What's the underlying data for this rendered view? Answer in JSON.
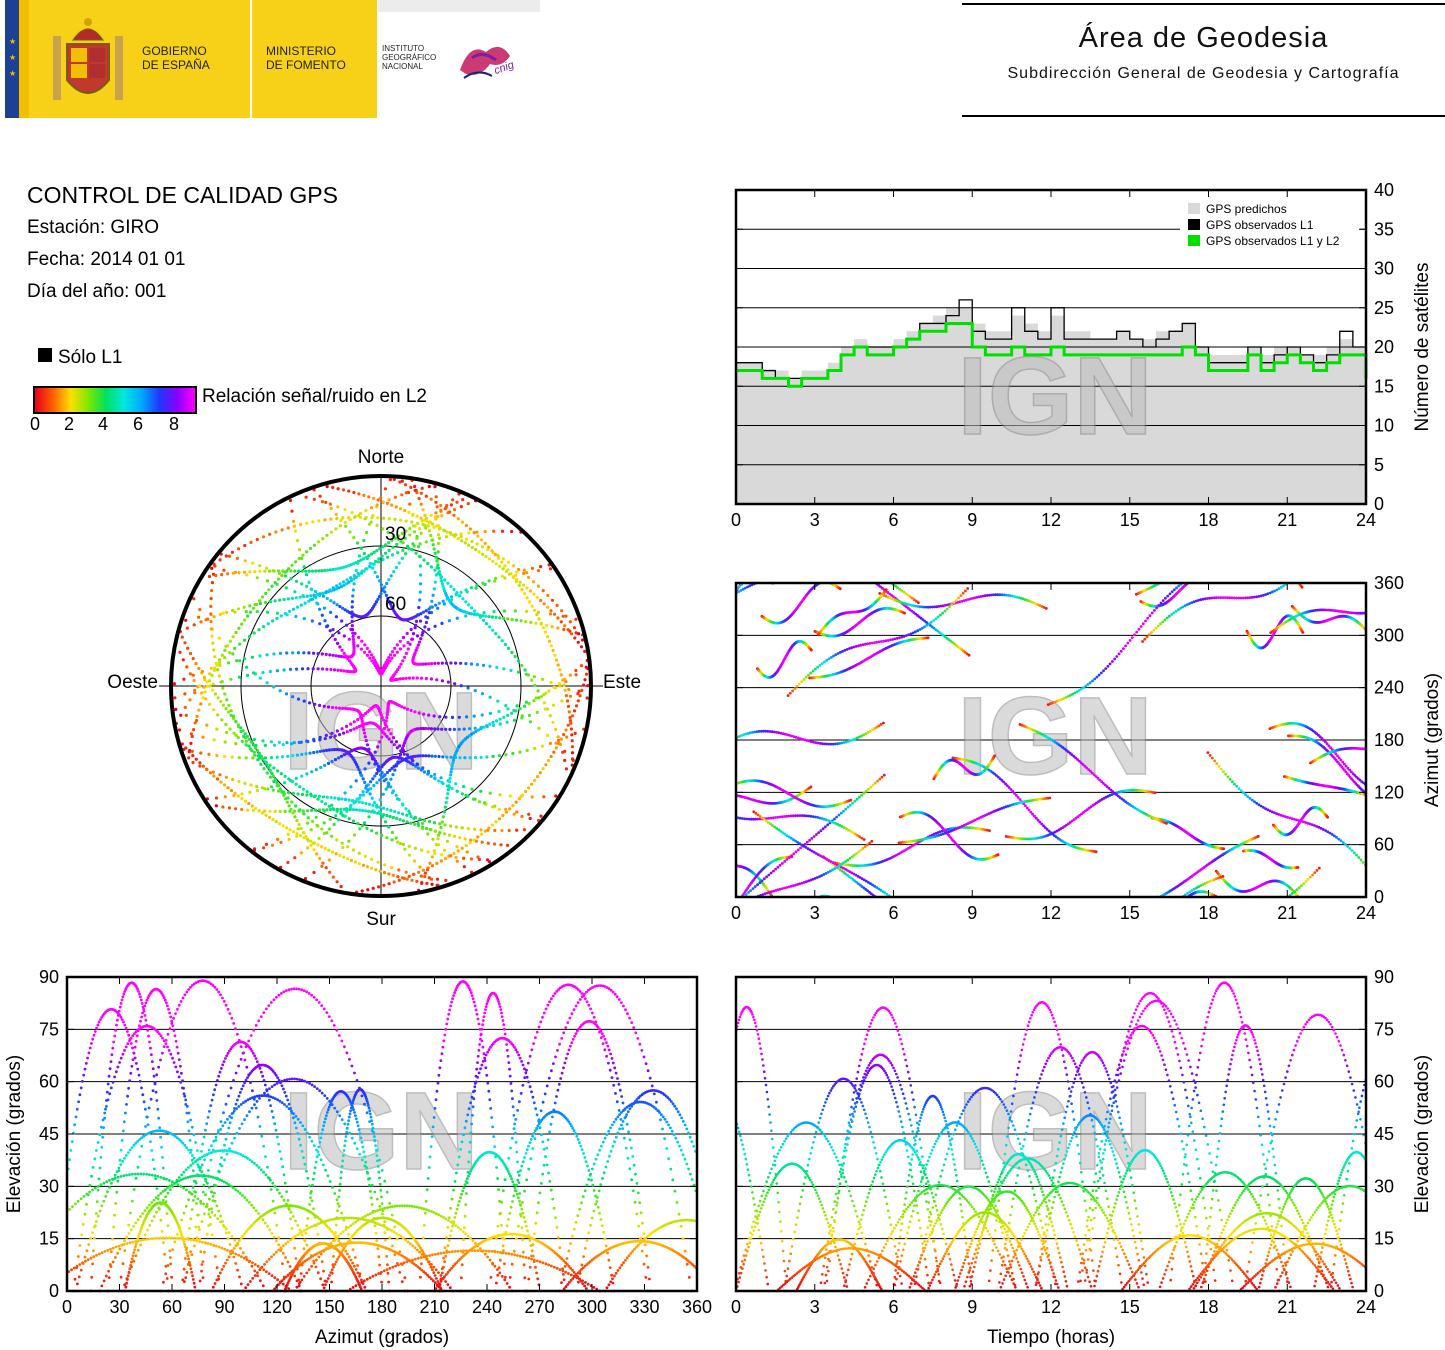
{
  "header": {
    "gobierno": "GOBIERNO\nDE ESPAÑA",
    "ministerio": "MINISTERIO\nDE FOMENTO",
    "instituto": "INSTITUTO\nGEOGRÁFICO\nNACIONAL",
    "cnig": "cnig",
    "area_title": "Área de Geodesia",
    "subtitle": "Subdirección General de Geodesia y Cartografía"
  },
  "info": {
    "title": "CONTROL DE CALIDAD GPS",
    "station": "Estación: GIRO",
    "date": "Fecha: 2014 01 01",
    "doy": "Día del año: 001"
  },
  "legend": {
    "l1_only": "Sólo L1",
    "snr_label": "Relación señal/ruido en L2",
    "colorbar_ticks": [
      "0",
      "2",
      "4",
      "6",
      "8"
    ],
    "colorbar_colors": [
      "#e8001b",
      "#ff5c00",
      "#ffdf00",
      "#7ee800",
      "#00e060",
      "#00e8e0",
      "#00a8ff",
      "#2038ff",
      "#8a00ff",
      "#ff00ff"
    ]
  },
  "watermark": "IGN",
  "chart_data": [
    {
      "id": "satcount",
      "type": "area",
      "x_range": [
        0,
        24
      ],
      "y_range": [
        0,
        40
      ],
      "xticks": [
        "0",
        "3",
        "6",
        "9",
        "12",
        "15",
        "18",
        "21",
        "24"
      ],
      "yticks": [
        "0",
        "5",
        "10",
        "15",
        "20",
        "25",
        "30",
        "35",
        "40"
      ],
      "ylabel": "Número de satélites",
      "grid": true,
      "legend": [
        "GPS predichos",
        "GPS observados L1",
        "GPS observados L1 y L2"
      ],
      "legend_colors": [
        "#d9d9d9",
        "#000000",
        "#00e000"
      ],
      "x": [
        0,
        0.5,
        1,
        1.5,
        2,
        2.5,
        3,
        3.5,
        4,
        4.5,
        5,
        5.5,
        6,
        6.5,
        7,
        7.5,
        8,
        8.5,
        9,
        9.5,
        10,
        10.5,
        11,
        11.5,
        12,
        12.5,
        13,
        13.5,
        14,
        14.5,
        15,
        15.5,
        16,
        16.5,
        17,
        17.5,
        18,
        18.5,
        19,
        19.5,
        20,
        20.5,
        21,
        21.5,
        22,
        22.5,
        23,
        23.5,
        24
      ],
      "series": [
        {
          "name": "GPS predichos",
          "values": [
            18,
            18,
            17,
            17,
            16,
            17,
            17,
            18,
            20,
            21,
            20,
            20,
            21,
            22,
            23,
            24,
            25,
            25,
            23,
            22,
            22,
            24,
            23,
            22,
            24,
            22,
            22,
            21,
            21,
            22,
            21,
            21,
            22,
            22,
            23,
            20,
            19,
            19,
            19,
            20,
            19,
            20,
            20,
            19,
            19,
            20,
            21,
            20,
            17
          ]
        },
        {
          "name": "GPS observados L1",
          "values": [
            18,
            18,
            17,
            16,
            16,
            16,
            16,
            17,
            19,
            20,
            20,
            20,
            20,
            21,
            23,
            23,
            24,
            26,
            22,
            21,
            21,
            25,
            22,
            21,
            25,
            21,
            21,
            21,
            21,
            22,
            21,
            20,
            21,
            22,
            23,
            20,
            18,
            18,
            18,
            20,
            18,
            19,
            20,
            19,
            18,
            19,
            22,
            20,
            16
          ]
        },
        {
          "name": "GPS observados L1 y L2",
          "values": [
            17,
            17,
            16,
            16,
            15,
            16,
            16,
            17,
            19,
            20,
            19,
            19,
            20,
            21,
            22,
            22,
            23,
            23,
            20,
            19,
            19,
            20,
            19,
            19,
            20,
            19,
            19,
            19,
            19,
            19,
            19,
            19,
            19,
            19,
            20,
            19,
            17,
            17,
            17,
            19,
            17,
            18,
            19,
            18,
            17,
            18,
            19,
            19,
            16
          ]
        }
      ]
    },
    {
      "id": "skyplot",
      "type": "scatter",
      "polar": true,
      "directions": {
        "n": "Norte",
        "s": "Sur",
        "e": "Este",
        "w": "Oeste"
      },
      "ring_labels": [
        "30",
        "60"
      ]
    },
    {
      "id": "azimuth_time",
      "type": "scatter",
      "x_range": [
        0,
        24
      ],
      "y_range": [
        0,
        360
      ],
      "xticks": [
        "0",
        "3",
        "6",
        "9",
        "12",
        "15",
        "18",
        "21",
        "24"
      ],
      "yticks": [
        "0",
        "60",
        "120",
        "180",
        "240",
        "300",
        "360"
      ],
      "ylabel": "Azimut (grados)",
      "grid": true
    },
    {
      "id": "elev_azimuth",
      "type": "scatter",
      "x_range": [
        0,
        360
      ],
      "y_range": [
        0,
        90
      ],
      "xticks": [
        "0",
        "30",
        "60",
        "90",
        "120",
        "150",
        "180",
        "210",
        "240",
        "270",
        "300",
        "330",
        "360"
      ],
      "yticks": [
        "0",
        "15",
        "30",
        "45",
        "60",
        "75",
        "90"
      ],
      "xlabel": "Azimut (grados)",
      "ylabel": "Elevación (grados)",
      "grid": true
    },
    {
      "id": "elev_time",
      "type": "scatter",
      "x_range": [
        0,
        24
      ],
      "y_range": [
        0,
        90
      ],
      "xticks": [
        "0",
        "3",
        "6",
        "9",
        "12",
        "15",
        "18",
        "21",
        "24"
      ],
      "yticks": [
        "0",
        "15",
        "30",
        "45",
        "60",
        "75",
        "90"
      ],
      "xlabel": "Tiempo (horas)",
      "ylabel": "Elevación (grados)",
      "grid": true
    }
  ]
}
